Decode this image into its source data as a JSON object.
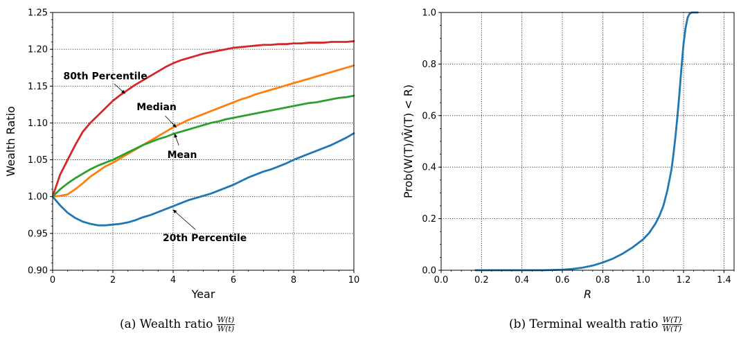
{
  "chart_data": [
    {
      "type": "line",
      "xlabel": "Year",
      "ylabel": "Wealth Ratio",
      "xlim": [
        0,
        10
      ],
      "ylim": [
        0.9,
        1.25
      ],
      "xticks": [
        "0",
        "2",
        "4",
        "6",
        "8",
        "10"
      ],
      "yticks": [
        "0.90",
        "0.95",
        "1.00",
        "1.05",
        "1.10",
        "1.15",
        "1.20",
        "1.25"
      ],
      "grid": true,
      "caption": {
        "prefix": "(a) Wealth ratio",
        "numerator": "W(t)",
        "denominator": "Ŵ(t)"
      },
      "series": [
        {
          "name": "80th Percentile",
          "color": "#d62728",
          "x": [
            0,
            0.25,
            0.5,
            0.75,
            1,
            1.25,
            1.5,
            1.75,
            2,
            2.25,
            2.5,
            2.75,
            3,
            3.25,
            3.5,
            3.75,
            4,
            4.25,
            4.5,
            4.75,
            5,
            5.25,
            5.5,
            5.75,
            6,
            6.25,
            6.5,
            6.75,
            7,
            7.25,
            7.5,
            7.75,
            8,
            8.25,
            8.5,
            8.75,
            9,
            9.25,
            9.5,
            9.75,
            10
          ],
          "y": [
            1.0,
            1.03,
            1.05,
            1.07,
            1.088,
            1.1,
            1.11,
            1.12,
            1.13,
            1.138,
            1.145,
            1.152,
            1.158,
            1.164,
            1.17,
            1.176,
            1.181,
            1.185,
            1.188,
            1.191,
            1.194,
            1.196,
            1.198,
            1.2,
            1.202,
            1.203,
            1.204,
            1.205,
            1.206,
            1.206,
            1.207,
            1.207,
            1.208,
            1.208,
            1.209,
            1.209,
            1.209,
            1.21,
            1.21,
            1.21,
            1.211
          ]
        },
        {
          "name": "Median",
          "color": "#ff7f0e",
          "x": [
            0,
            0.25,
            0.5,
            0.75,
            1,
            1.25,
            1.5,
            1.75,
            2,
            2.25,
            2.5,
            2.75,
            3,
            3.25,
            3.5,
            3.75,
            4,
            4.25,
            4.5,
            4.75,
            5,
            5.25,
            5.5,
            5.75,
            6,
            6.25,
            6.5,
            6.75,
            7,
            7.25,
            7.5,
            7.75,
            8,
            8.25,
            8.5,
            8.75,
            9,
            9.25,
            9.5,
            9.75,
            10
          ],
          "y": [
            1.0,
            1.001,
            1.003,
            1.01,
            1.018,
            1.027,
            1.034,
            1.041,
            1.046,
            1.052,
            1.058,
            1.064,
            1.07,
            1.076,
            1.082,
            1.088,
            1.094,
            1.099,
            1.104,
            1.108,
            1.112,
            1.116,
            1.12,
            1.124,
            1.128,
            1.132,
            1.135,
            1.139,
            1.142,
            1.145,
            1.148,
            1.151,
            1.154,
            1.157,
            1.16,
            1.163,
            1.166,
            1.169,
            1.172,
            1.175,
            1.178
          ]
        },
        {
          "name": "Mean",
          "color": "#2ca02c",
          "x": [
            0,
            0.25,
            0.5,
            0.75,
            1,
            1.25,
            1.5,
            1.75,
            2,
            2.25,
            2.5,
            2.75,
            3,
            3.25,
            3.5,
            3.75,
            4,
            4.25,
            4.5,
            4.75,
            5,
            5.25,
            5.5,
            5.75,
            6,
            6.25,
            6.5,
            6.75,
            7,
            7.25,
            7.5,
            7.75,
            8,
            8.25,
            8.5,
            8.75,
            9,
            9.25,
            9.5,
            9.75,
            10
          ],
          "y": [
            1.0,
            1.01,
            1.018,
            1.025,
            1.031,
            1.037,
            1.042,
            1.046,
            1.05,
            1.055,
            1.06,
            1.065,
            1.07,
            1.074,
            1.078,
            1.081,
            1.085,
            1.088,
            1.091,
            1.094,
            1.097,
            1.1,
            1.102,
            1.105,
            1.107,
            1.109,
            1.111,
            1.113,
            1.115,
            1.117,
            1.119,
            1.121,
            1.123,
            1.125,
            1.127,
            1.128,
            1.13,
            1.132,
            1.134,
            1.135,
            1.137
          ]
        },
        {
          "name": "20th Percentile",
          "color": "#1f77b4",
          "x": [
            0,
            0.25,
            0.5,
            0.75,
            1,
            1.25,
            1.5,
            1.75,
            2,
            2.25,
            2.5,
            2.75,
            3,
            3.25,
            3.5,
            3.75,
            4,
            4.25,
            4.5,
            4.75,
            5,
            5.25,
            5.5,
            5.75,
            6,
            6.25,
            6.5,
            6.75,
            7,
            7.25,
            7.5,
            7.75,
            8,
            8.25,
            8.5,
            8.75,
            9,
            9.25,
            9.5,
            9.75,
            10
          ],
          "y": [
            1.0,
            0.988,
            0.978,
            0.971,
            0.966,
            0.963,
            0.961,
            0.961,
            0.962,
            0.963,
            0.965,
            0.968,
            0.972,
            0.975,
            0.979,
            0.983,
            0.987,
            0.991,
            0.995,
            0.998,
            1.001,
            1.004,
            1.008,
            1.012,
            1.016,
            1.021,
            1.026,
            1.03,
            1.034,
            1.037,
            1.041,
            1.045,
            1.05,
            1.054,
            1.058,
            1.062,
            1.066,
            1.07,
            1.075,
            1.08,
            1.086
          ]
        }
      ],
      "annotations": [
        {
          "text": "80th Percentile",
          "at": [
            2.4,
            1.14
          ],
          "text_at": [
            1.75,
            1.164
          ]
        },
        {
          "text": "Median",
          "at": [
            4.1,
            1.094
          ],
          "text_at": [
            3.45,
            1.122
          ]
        },
        {
          "text": "Mean",
          "at": [
            4.05,
            1.085
          ],
          "text_at": [
            4.3,
            1.057
          ]
        },
        {
          "text": "20th Percentile",
          "at": [
            4.0,
            0.982
          ],
          "text_at": [
            5.05,
            0.944
          ]
        }
      ]
    },
    {
      "type": "line",
      "xlabel": "R",
      "ylabel": "Prob(W(T)/Ŵ(T) < R)",
      "xlim": [
        0.0,
        1.45
      ],
      "ylim": [
        0.0,
        1.0
      ],
      "xticks": [
        "0.0",
        "0.2",
        "0.4",
        "0.6",
        "0.8",
        "1.0",
        "1.2",
        "1.4"
      ],
      "yticks": [
        "0.0",
        "0.2",
        "0.4",
        "0.6",
        "0.8",
        "1.0"
      ],
      "grid": true,
      "caption": {
        "prefix": "(b) Terminal wealth ratio",
        "numerator": "W(T)",
        "denominator": "Ŵ(T)"
      },
      "series": [
        {
          "color": "#1f77b4",
          "x": [
            0.17,
            0.3,
            0.4,
            0.5,
            0.6,
            0.65,
            0.7,
            0.75,
            0.8,
            0.85,
            0.9,
            0.95,
            1.0,
            1.03,
            1.06,
            1.08,
            1.1,
            1.12,
            1.14,
            1.15,
            1.16,
            1.17,
            1.18,
            1.19,
            1.2,
            1.21,
            1.22,
            1.23,
            1.24,
            1.25,
            1.27
          ],
          "y": [
            0.0,
            0.0,
            0.0,
            0.0,
            0.002,
            0.005,
            0.01,
            0.018,
            0.03,
            0.045,
            0.065,
            0.09,
            0.12,
            0.145,
            0.18,
            0.21,
            0.25,
            0.31,
            0.39,
            0.45,
            0.52,
            0.6,
            0.69,
            0.79,
            0.88,
            0.94,
            0.98,
            0.995,
            1.0,
            1.0,
            1.0
          ]
        }
      ]
    }
  ]
}
